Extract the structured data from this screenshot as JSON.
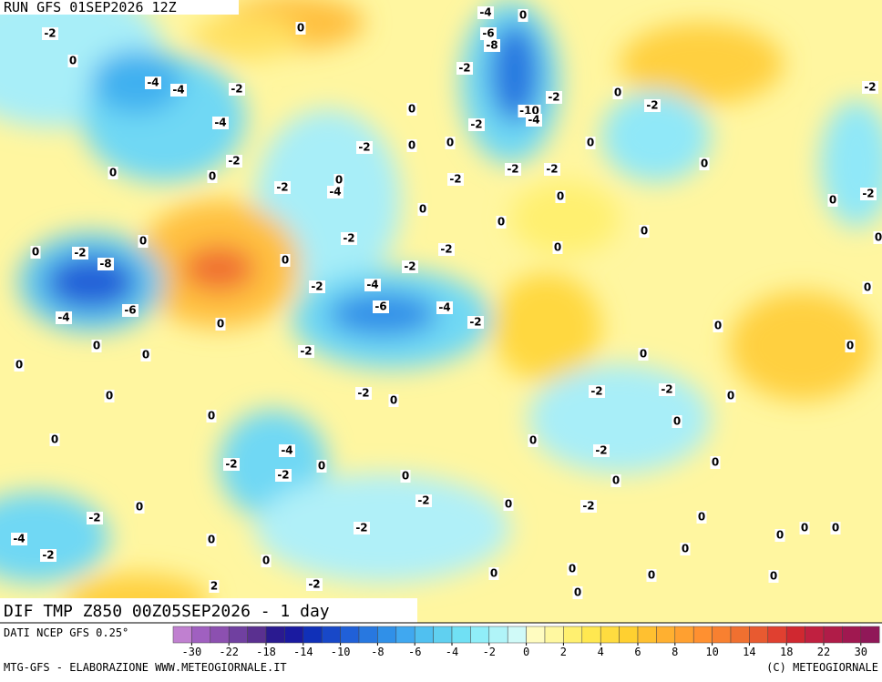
{
  "header": {
    "run": "RUN GFS 01SEP2026 12Z"
  },
  "map": {
    "title": "DIF TMP Z850 00Z05SEP2026 - 1 day",
    "labels": [
      "-2",
      "0",
      "-4",
      "-4",
      "-2",
      "-4",
      "0",
      "0",
      "-2",
      "0",
      "0",
      "-2",
      "-2",
      "-4",
      "-6",
      "-8",
      "0",
      "-10",
      "-4",
      "-2",
      "0",
      "-2",
      "0",
      "-2",
      "-2",
      "0",
      "0",
      "-2",
      "-2",
      "-4",
      "0",
      "-2",
      "0",
      "0",
      "0",
      "0",
      "0",
      "-2",
      "-8",
      "0",
      "-2",
      "-2",
      "0",
      "0",
      "-2",
      "-4",
      "-2",
      "-6",
      "-4",
      "-4",
      "-6",
      "0",
      "-2",
      "0",
      "-2",
      "0",
      "0",
      "-2",
      "0",
      "0",
      "0",
      "-2",
      "-2",
      "0",
      "0",
      "0",
      "0",
      "0",
      "-4",
      "-2",
      "-2",
      "0",
      "0",
      "-2",
      "0",
      "-2",
      "-2",
      "0",
      "0",
      "0",
      "0",
      "-2",
      "0",
      "-4",
      "-2",
      "0",
      "-2",
      "0",
      "-2",
      "2",
      "0",
      "0",
      "0",
      "0",
      "0",
      "0",
      "0",
      "0",
      "0",
      "0",
      "-2",
      "0",
      "-2",
      "0",
      "0",
      "0"
    ]
  },
  "legend": {
    "source": "DATI NCEP GFS 0.25°",
    "colors": [
      "#c080d0",
      "#a060c0",
      "#8c50b0",
      "#7040a0",
      "#5a3090",
      "#2a1a90",
      "#1a1aa0",
      "#1030b8",
      "#1848c8",
      "#2060d8",
      "#2878e0",
      "#3090e8",
      "#40a8f0",
      "#50c0f0",
      "#60d0f0",
      "#70e0f4",
      "#90eef8",
      "#b0f4f8",
      "#d0faf8",
      "#fffcc0",
      "#fff8a0",
      "#fff070",
      "#ffe850",
      "#ffdc40",
      "#ffd030",
      "#ffc030",
      "#ffb030",
      "#ffa030",
      "#ff9030",
      "#f88030",
      "#f07030",
      "#e85a30",
      "#e04030",
      "#d02830",
      "#c02040",
      "#b01c48",
      "#a01850",
      "#901858"
    ],
    "ticks": [
      -30,
      -22,
      -18,
      -14,
      -10,
      -8,
      -6,
      -4,
      -2,
      0,
      2,
      4,
      6,
      8,
      10,
      14,
      18,
      22,
      30
    ]
  },
  "footer": {
    "credit": "MTG-GFS - ELABORAZIONE WWW.METEOGIORNALE.IT",
    "copyright": "(C) METEOGIORNALE"
  }
}
